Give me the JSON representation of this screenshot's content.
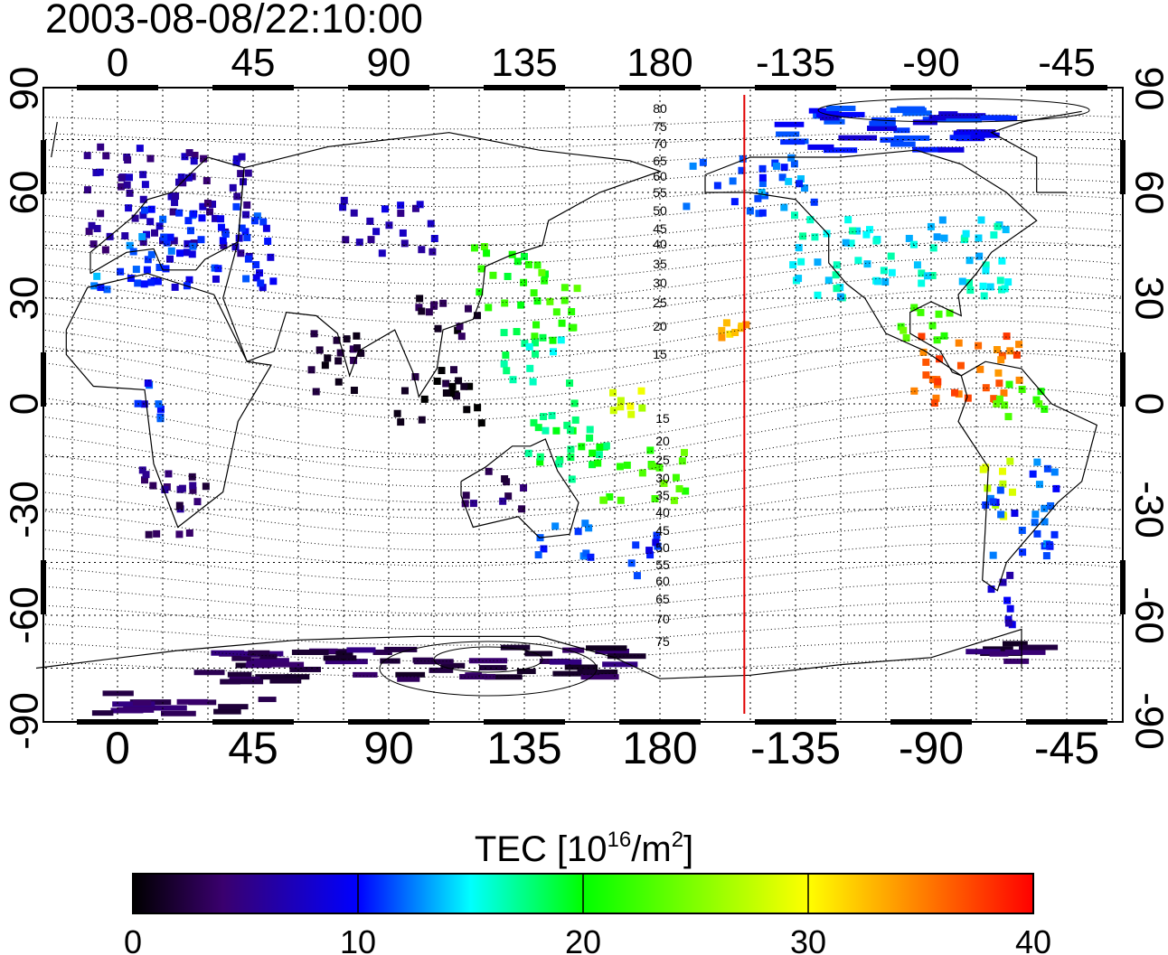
{
  "title": "2003-08-08/22:10:00",
  "map": {
    "x_ticks": [
      "0",
      "45",
      "90",
      "135",
      "180",
      "-135",
      "-90",
      "-45"
    ],
    "y_ticks": [
      "90",
      "60",
      "30",
      "0",
      "-30",
      "-60",
      "-90"
    ],
    "terminator_longitude": -152,
    "contour_labels_north": [
      "80",
      "75",
      "70",
      "65",
      "60",
      "55",
      "50",
      "45",
      "40",
      "35",
      "30",
      "25",
      "20",
      "15"
    ],
    "contour_labels_south": [
      "15",
      "20",
      "25",
      "30",
      "35",
      "40",
      "45",
      "50",
      "55",
      "60",
      "65",
      "70",
      "75"
    ]
  },
  "colorbar": {
    "label_prefix": "TEC  [10",
    "label_exp1": "16",
    "label_mid": "/m",
    "label_exp2": "2",
    "label_suffix": "]",
    "ticks": [
      "0",
      "10",
      "20",
      "30",
      "40"
    ],
    "min": 0,
    "max": 40
  },
  "tec_regions": [
    {
      "lon": 18,
      "lat": 57,
      "w": 28,
      "h": 16,
      "tec": 6
    },
    {
      "lon": 28,
      "lat": 45,
      "w": 24,
      "h": 12,
      "tec": 10
    },
    {
      "lon": 5,
      "lat": 40,
      "w": 14,
      "h": 8,
      "tec": 12
    },
    {
      "lon": 110,
      "lat": 22,
      "w": 10,
      "h": 8,
      "tec": 2
    },
    {
      "lon": 72,
      "lat": 13,
      "w": 10,
      "h": 10,
      "tec": 2
    },
    {
      "lon": 105,
      "lat": 2,
      "w": 16,
      "h": 8,
      "tec": 1
    },
    {
      "lon": 90,
      "lat": 50,
      "w": 16,
      "h": 8,
      "tec": 7
    },
    {
      "lon": 130,
      "lat": 36,
      "w": 12,
      "h": 10,
      "tec": 21
    },
    {
      "lon": 145,
      "lat": 28,
      "w": 8,
      "h": 10,
      "tec": 22
    },
    {
      "lon": 140,
      "lat": 13,
      "w": 12,
      "h": 8,
      "tec": 17
    },
    {
      "lon": 148,
      "lat": -2,
      "w": 10,
      "h": 6,
      "tec": 18
    },
    {
      "lon": 150,
      "lat": -15,
      "w": 14,
      "h": 8,
      "tec": 19
    },
    {
      "lon": 175,
      "lat": -20,
      "w": 14,
      "h": 8,
      "tec": 23
    },
    {
      "lon": 170,
      "lat": 0,
      "w": 6,
      "h": 4,
      "tec": 28
    },
    {
      "lon": 148,
      "lat": -38,
      "w": 10,
      "h": 6,
      "tec": 12
    },
    {
      "lon": 174,
      "lat": -43,
      "w": 6,
      "h": 8,
      "tec": 10
    },
    {
      "lon": 125,
      "lat": -25,
      "w": 10,
      "h": 6,
      "tec": 4
    },
    {
      "lon": 20,
      "lat": -28,
      "w": 12,
      "h": 10,
      "tec": 4
    },
    {
      "lon": 10,
      "lat": 0,
      "w": 6,
      "h": 6,
      "tec": 10
    },
    {
      "lon": -155,
      "lat": 22,
      "w": 6,
      "h": 6,
      "tec": 33
    },
    {
      "lon": -150,
      "lat": 62,
      "w": 22,
      "h": 8,
      "tec": 12
    },
    {
      "lon": -100,
      "lat": 42,
      "w": 36,
      "h": 12,
      "tec": 15
    },
    {
      "lon": -80,
      "lat": 10,
      "w": 20,
      "h": 10,
      "tec": 36
    },
    {
      "lon": -90,
      "lat": 22,
      "w": 10,
      "h": 6,
      "tec": 23
    },
    {
      "lon": -62,
      "lat": 0,
      "w": 10,
      "h": 6,
      "tec": 22
    },
    {
      "lon": -68,
      "lat": -25,
      "w": 6,
      "h": 10,
      "tec": 28
    },
    {
      "lon": -60,
      "lat": -30,
      "w": 12,
      "h": 14,
      "tec": 11
    },
    {
      "lon": -68,
      "lat": -55,
      "w": 6,
      "h": 8,
      "tec": 8
    },
    {
      "lon": -65,
      "lat": -70,
      "w": 12,
      "h": 4,
      "tec": 3
    },
    {
      "lon": -100,
      "lat": 78,
      "w": 40,
      "h": 6,
      "tec": 10
    },
    {
      "lon": 100,
      "lat": -74,
      "w": 70,
      "h": 5,
      "tec": 3
    },
    {
      "lon": 20,
      "lat": -85,
      "w": 30,
      "h": 3,
      "tec": 3
    }
  ]
}
